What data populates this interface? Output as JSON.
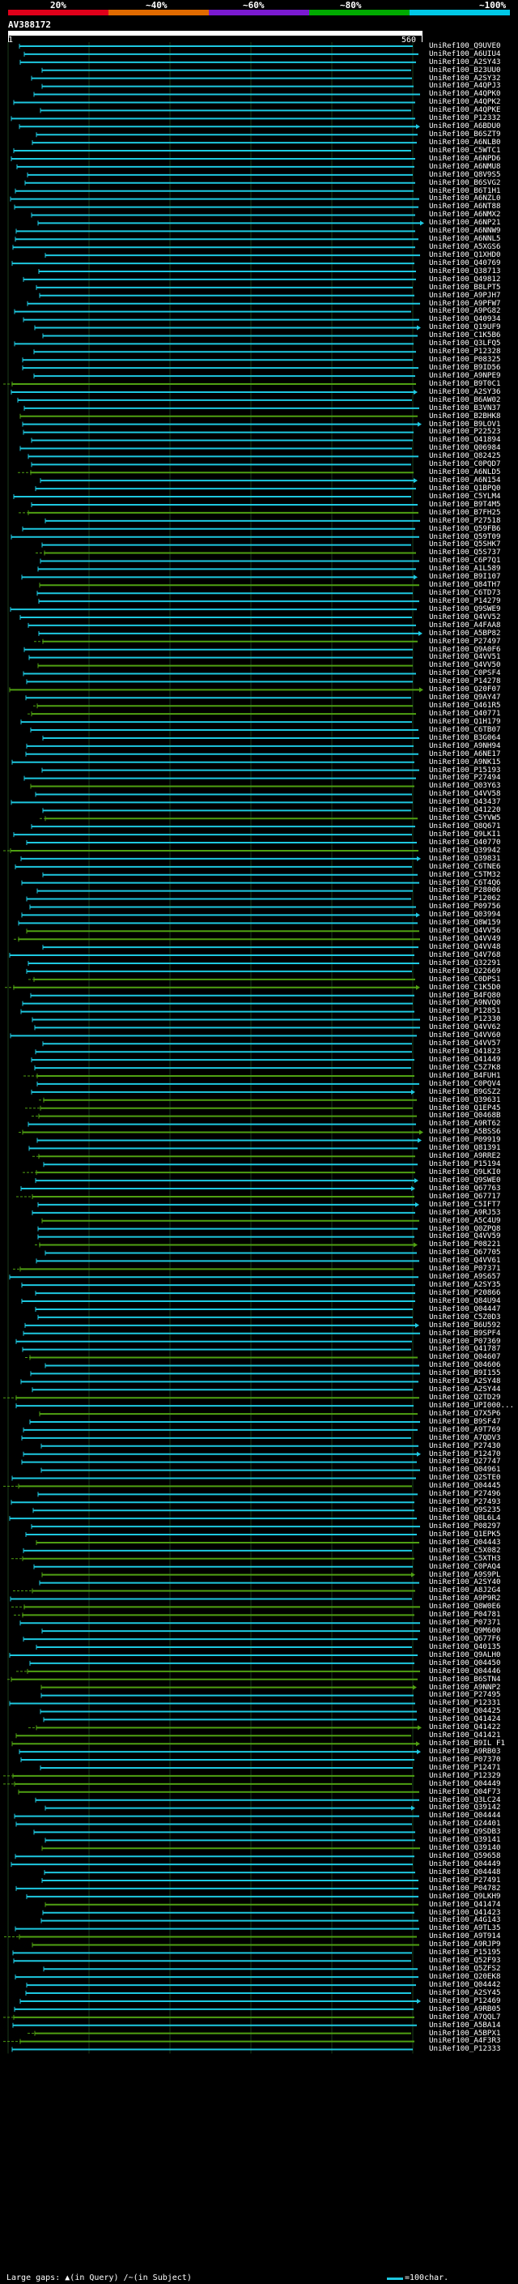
{
  "legend": {
    "labels": [
      "20%",
      "~40%",
      "~60%",
      "~80%",
      "~100%"
    ],
    "colors": [
      "#e0001a",
      "#e06a00",
      "#7a1ad0",
      "#00aa00",
      "#00c8e6"
    ]
  },
  "query": {
    "accession": "AV388172",
    "start": "1",
    "end": "560"
  },
  "colors": {
    "high": "#1ec8e0",
    "mid": "#4fa012",
    "grid": "#1a3d1a"
  },
  "hits": [
    "UniRef100_Q9UVE0",
    "UniRef100_A6UIU4",
    "UniRef100_A2SY43",
    "UniRef100_B23UU0",
    "UniRef100_A2SY32",
    "UniRef100_A4QPJ3",
    "UniRef100_A4QPK0",
    "UniRef100_A4QPK2",
    "UniRef100_A4QPKE",
    "UniRef100_P12332",
    "UniRef100_A6BDU0",
    "UniRef100_B6SZT9",
    "UniRef100_A6NLB0",
    "UniRef100_C5WTC1",
    "UniRef100_A6NPD6",
    "UniRef100_A6NMU8",
    "UniRef100_Q8V9S5",
    "UniRef100_B6SVG2",
    "UniRef100_B6T1H1",
    "UniRef100_A6NZL0",
    "UniRef100_A6NT88",
    "UniRef100_A6NMX2",
    "UniRef100_A6NP21",
    "UniRef100_A6NNW9",
    "UniRef100_A6NNL5",
    "UniRef100_A5XGS6",
    "UniRef100_Q1XHD0",
    "UniRef100_Q40769",
    "UniRef100_Q38713",
    "UniRef100_Q49812",
    "UniRef100_B8LPT5",
    "UniRef100_A9PJH7",
    "UniRef100_A9PFW7",
    "UniRef100_A9PG82",
    "UniRef100_Q40934",
    "UniRef100_Q19UF9",
    "UniRef100_C1K5B6",
    "UniRef100_Q3LFQ5",
    "UniRef100_P12328",
    "UniRef100_P08325",
    "UniRef100_B9ID56",
    "UniRef100_A9NPE9",
    "UniRef100_B9T0C1",
    "UniRef100_A2SY36",
    "UniRef100_B6AW02",
    "UniRef100_B3VN37",
    "UniRef100_B2BHK8",
    "UniRef100_B9LOV1",
    "UniRef100_P22523",
    "UniRef100_Q41894",
    "UniRef100_Q06984",
    "UniRef100_Q82425",
    "UniRef100_C0PQD7",
    "UniRef100_A6NLD5",
    "UniRef100_A6N154",
    "UniRef100_Q1BPQ0",
    "UniRef100_C5YLM4",
    "UniRef100_B9T4M5",
    "UniRef100_B7FH25",
    "UniRef100_P27518",
    "UniRef100_Q59FB6",
    "UniRef100_Q59T09",
    "UniRef100_Q5SHK7",
    "UniRef100_Q5S737",
    "UniRef100_C6P7Q1",
    "UniRef100_A1L589",
    "UniRef100_B9I107",
    "UniRef100_Q84TH7",
    "UniRef100_C6TD73",
    "UniRef100_P14279",
    "UniRef100_Q9SWE9",
    "UniRef100_Q4VV52",
    "UniRef100_A4FAA8",
    "UniRef100_A5BP82",
    "UniRef100_P27497",
    "UniRef100_Q9A0F6",
    "UniRef100_Q4VV51",
    "UniRef100_Q4VV50",
    "UniRef100_C0PSF4",
    "UniRef100_P14278",
    "UniRef100_Q20F07",
    "UniRef100_Q9AY47",
    "UniRef100_Q461R5",
    "UniRef100_Q40771",
    "UniRef100_Q1H179",
    "UniRef100_C6TB07",
    "UniRef100_B3G064",
    "UniRef100_A9NH94",
    "UniRef100_A6NE17",
    "UniRef100_A9NK15",
    "UniRef100_P15193",
    "UniRef100_P27494",
    "UniRef100_Q03Y63",
    "UniRef100_Q4VV58",
    "UniRef100_Q43437",
    "UniRef100_Q41220",
    "UniRef100_C5YVW5",
    "UniRef100_Q8Q671",
    "UniRef100_Q9LKI1",
    "UniRef100_Q40770",
    "UniRef100_Q39942",
    "UniRef100_Q39831",
    "UniRef100_C6TNE6",
    "UniRef100_C5TM32",
    "UniRef100_C6T4Q6",
    "UniRef100_P28006",
    "UniRef100_P12062",
    "UniRef100_P09756",
    "UniRef100_Q03994",
    "UniRef100_Q8W159",
    "UniRef100_Q4VV56",
    "UniRef100_Q4VV49",
    "UniRef100_Q4VV48",
    "UniRef100_Q4V768",
    "UniRef100_Q32291",
    "UniRef100_Q22669",
    "UniRef100_C0DPS1",
    "UniRef100_C1K5D0",
    "UniRef100_B4FQ80",
    "UniRef100_A9NVQ0",
    "UniRef100_P12851",
    "UniRef100_P12330",
    "UniRef100_Q4VV62",
    "UniRef100_Q4VV60",
    "UniRef100_Q4VV57",
    "UniRef100_Q41823",
    "UniRef100_Q41449",
    "UniRef100_C5Z7K8",
    "UniRef100_B4FUH1",
    "UniRef100_C0PQV4",
    "UniRef100_B9GSZ2",
    "UniRef100_Q39631",
    "UniRef100_Q1EP45",
    "UniRef100_Q0468B",
    "UniRef100_A9RT62",
    "UniRef100_A5BSS6",
    "UniRef100_P09919",
    "UniRef100_Q81391",
    "UniRef100_A9RRE2",
    "UniRef100_P15194",
    "UniRef100_Q9LKI0",
    "UniRef100_Q9SWE0",
    "UniRef100_Q67763",
    "UniRef100_Q67717",
    "UniRef100_C5IFT7",
    "UniRef100_A9RJ53",
    "UniRef100_A5C4U9",
    "UniRef100_Q0ZPQ8",
    "UniRef100_Q4VV59",
    "UniRef100_P08221",
    "UniRef100_Q67705",
    "UniRef100_Q4VV61",
    "UniRef100_P07371",
    "UniRef100_A9S657",
    "UniRef100_A2SY35",
    "UniRef100_P20866",
    "UniRef100_Q84U94",
    "UniRef100_Q04447",
    "UniRef100_C5Z0D3",
    "UniRef100_B6U592",
    "UniRef100_B9SPF4",
    "UniRef100_P07369",
    "UniRef100_Q41787",
    "UniRef100_Q04607",
    "UniRef100_Q04606",
    "UniRef100_B9I155",
    "UniRef100_A2SY48",
    "UniRef100_A2SY44",
    "UniRef100_Q2TD29",
    "UniRef100_UPI000...",
    "UniRef100_Q7X5P6",
    "UniRef100_B9SF47",
    "UniRef100_A9T769",
    "UniRef100_A7QDV3",
    "UniRef100_P27430",
    "UniRef100_P12470",
    "UniRef100_Q27747",
    "UniRef100_Q04961",
    "UniRef100_Q2STE0",
    "UniRef100_Q04445",
    "UniRef100_P27496",
    "UniRef100_P27493",
    "UniRef100_Q9S235",
    "UniRef100_Q8L6L4",
    "UniRef100_P08297",
    "UniRef100_Q1EPK5",
    "UniRef100_Q04443",
    "UniRef100_C5X082",
    "UniRef100_C5XTH3",
    "UniRef100_C0PAQ4",
    "UniRef100_A9S9PL",
    "UniRef100_A2SY40",
    "UniRef100_A8J2G4",
    "UniRef100_A9P9R2",
    "UniRef100_Q8W0E6",
    "UniRef100_P04781",
    "UniRef100_P07371",
    "UniRef100_Q9M600",
    "UniRef100_Q677F6",
    "UniRef100_Q40135",
    "UniRef100_Q9ALH0",
    "UniRef100_Q04450",
    "UniRef100_Q04446",
    "UniRef100_B6STN4",
    "UniRef100_A9NNP2",
    "UniRef100_P27495",
    "UniRef100_P12331",
    "UniRef100_Q04425",
    "UniRef100_Q41424",
    "UniRef100_Q41422",
    "UniRef100_Q41421",
    "UniRef100_B9IL F1",
    "UniRef100_A9RB03",
    "UniRef100_P07370",
    "UniRef100_P12471",
    "UniRef100_P12329",
    "UniRef100_Q04449",
    "UniRef100_Q04F73",
    "UniRef100_Q3LC24",
    "UniRef100_Q39142",
    "UniRef100_Q04444",
    "UniRef100_Q24401",
    "UniRef100_Q9SDB3",
    "UniRef100_Q39141",
    "UniRef100_Q39140",
    "UniRef100_Q59658",
    "UniRef100_Q04449",
    "UniRef100_Q04448",
    "UniRef100_P27491",
    "UniRef100_P04782",
    "UniRef100_Q9LKH9",
    "UniRef100_Q41474",
    "UniRef100_Q41423",
    "UniRef100_A4G143",
    "UniRef100_A9TL35",
    "UniRef100_A9T914",
    "UniRef100_A9RJP9",
    "UniRef100_P15195",
    "UniRef100_Q52F93",
    "UniRef100_Q5ZFS2",
    "UniRef100_Q20EK8",
    "UniRef100_Q04442",
    "UniRef100_A2SY45",
    "UniRef100_P12469",
    "UniRef100_A9RB05",
    "UniRef100_A7QQL7",
    "UniRef100_A5BA14",
    "UniRef100_A5BPX1",
    "UniRef100_A4F3R3",
    "UniRef100_P12333"
  ],
  "footer": {
    "gaps_label": "Large gaps:",
    "in_query": "(in Query)",
    "in_subject": "(in Subject)",
    "scale": "=100char."
  }
}
